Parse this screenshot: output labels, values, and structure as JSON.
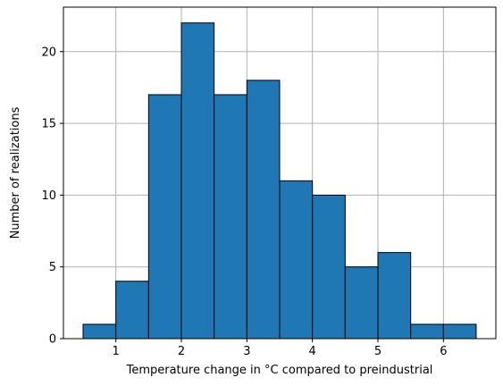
{
  "chart_data": {
    "type": "bar",
    "bin_edges": [
      0.5,
      1.0,
      1.5,
      2.0,
      2.5,
      3.0,
      3.5,
      4.0,
      4.5,
      5.0,
      5.5,
      6.0,
      6.5
    ],
    "values": [
      1,
      4,
      17,
      22,
      17,
      18,
      11,
      10,
      5,
      6,
      1,
      1
    ],
    "xlabel": "Temperature change in °C compared to preindustrial",
    "ylabel": "Number of realizations",
    "xlim": [
      0.2,
      6.8
    ],
    "ylim": [
      0,
      23.1
    ],
    "x_ticks": [
      1,
      2,
      3,
      4,
      5,
      6
    ],
    "y_ticks": [
      0,
      5,
      10,
      15,
      20
    ],
    "grid": true,
    "bar_color": "#1f77b4",
    "edge_color": "#000000",
    "grid_color": "#b0b0b0"
  }
}
